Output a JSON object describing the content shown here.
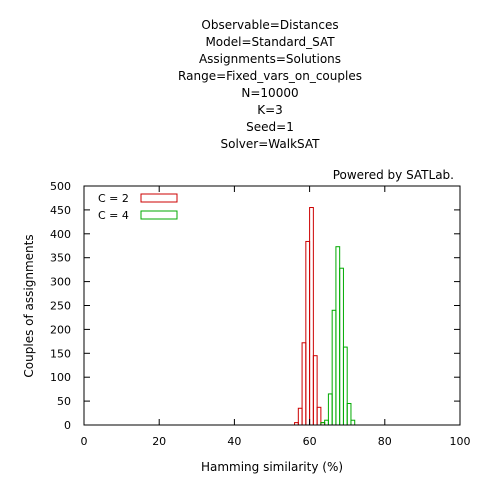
{
  "chart_data": {
    "type": "bar",
    "title_lines": [
      "Observable=Distances",
      "Model=Standard_SAT",
      "Assignments=Solutions",
      "Range=Fixed_vars_on_couples",
      "N=10000",
      "K=3",
      "Seed=1",
      "Solver=WalkSAT"
    ],
    "credit": "Powered by SATLab.",
    "xlabel": "Hamming similarity (%)",
    "ylabel": "Couples of assignments",
    "xlim": [
      0,
      100
    ],
    "ylim": [
      0,
      500
    ],
    "x_ticks": [
      0,
      20,
      40,
      60,
      80,
      100
    ],
    "y_ticks": [
      0,
      50,
      100,
      150,
      200,
      250,
      300,
      350,
      400,
      450,
      500
    ],
    "bin_width": 1,
    "legend_position": "top-left",
    "series": [
      {
        "name": "C = 2",
        "color": "#cc0000",
        "bins": [
          {
            "x": 56,
            "y": 5
          },
          {
            "x": 57,
            "y": 35
          },
          {
            "x": 58,
            "y": 172
          },
          {
            "x": 59,
            "y": 384
          },
          {
            "x": 60,
            "y": 455
          },
          {
            "x": 61,
            "y": 145
          },
          {
            "x": 62,
            "y": 37
          },
          {
            "x": 63,
            "y": 5
          }
        ]
      },
      {
        "name": "C = 4",
        "color": "#00aa00",
        "bins": [
          {
            "x": 63,
            "y": 5
          },
          {
            "x": 64,
            "y": 10
          },
          {
            "x": 65,
            "y": 65
          },
          {
            "x": 66,
            "y": 240
          },
          {
            "x": 67,
            "y": 373
          },
          {
            "x": 68,
            "y": 328
          },
          {
            "x": 69,
            "y": 163
          },
          {
            "x": 70,
            "y": 45
          },
          {
            "x": 71,
            "y": 10
          }
        ]
      }
    ]
  }
}
